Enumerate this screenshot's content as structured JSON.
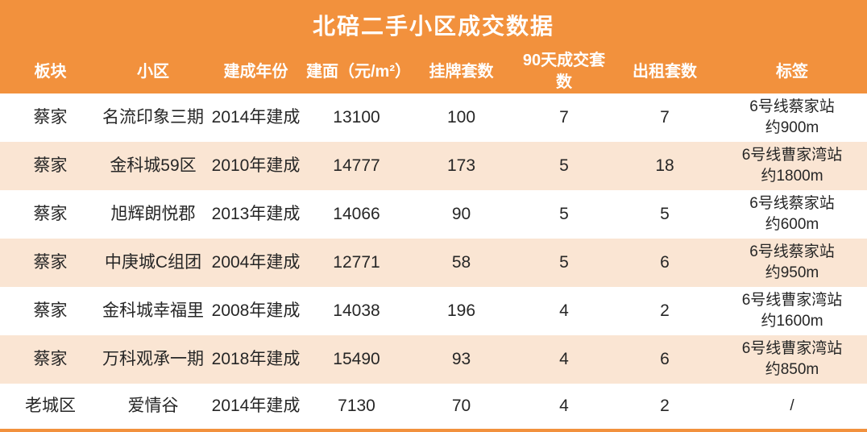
{
  "title": "北碚二手小区成交数据",
  "colors": {
    "header_orange": "#F2913D",
    "row_light_orange": "#FAE5D3",
    "row_white": "#FFFFFF",
    "header_text": "#FFFFFF",
    "body_text": "#262626"
  },
  "columns": [
    "板块",
    "小区",
    "建成年份",
    "建面（元/m²）",
    "挂牌套数",
    "90天成交套数",
    "出租套数",
    "标签"
  ],
  "table": {
    "rows": [
      {
        "block": "蔡家",
        "community": "名流印象三期",
        "year": "2014年建成",
        "price": "13100",
        "listed": "100",
        "sold90": "7",
        "rent": "7",
        "tag1": "6号线蔡家站",
        "tag2": "约900m"
      },
      {
        "block": "蔡家",
        "community": "金科城59区",
        "year": "2010年建成",
        "price": "14777",
        "listed": "173",
        "sold90": "5",
        "rent": "18",
        "tag1": "6号线曹家湾站",
        "tag2": "约1800m"
      },
      {
        "block": "蔡家",
        "community": "旭辉朗悦郡",
        "year": "2013年建成",
        "price": "14066",
        "listed": "90",
        "sold90": "5",
        "rent": "5",
        "tag1": "6号线蔡家站",
        "tag2": "约600m"
      },
      {
        "block": "蔡家",
        "community": "中庚城C组团",
        "year": "2004年建成",
        "price": "12771",
        "listed": "58",
        "sold90": "5",
        "rent": "6",
        "tag1": "6号线蔡家站",
        "tag2": "约950m"
      },
      {
        "block": "蔡家",
        "community": "金科城幸福里",
        "year": "2008年建成",
        "price": "14038",
        "listed": "196",
        "sold90": "4",
        "rent": "2",
        "tag1": "6号线曹家湾站",
        "tag2": "约1600m"
      },
      {
        "block": "蔡家",
        "community": "万科观承一期",
        "year": "2018年建成",
        "price": "15490",
        "listed": "93",
        "sold90": "4",
        "rent": "6",
        "tag1": "6号线曹家湾站",
        "tag2": "约850m"
      },
      {
        "block": "老城区",
        "community": "爱情谷",
        "year": "2014年建成",
        "price": "7130",
        "listed": "70",
        "sold90": "4",
        "rent": "2",
        "tag1": "/",
        "tag2": ""
      }
    ]
  },
  "chart_data": {
    "type": "table",
    "title": "北碚二手小区成交数据",
    "columns": [
      "板块",
      "小区",
      "建成年份",
      "建面（元/m²）",
      "挂牌套数",
      "90天成交套数",
      "出租套数",
      "标签"
    ],
    "rows": [
      [
        "蔡家",
        "名流印象三期",
        "2014年建成",
        13100,
        100,
        7,
        7,
        "6号线蔡家站约900m"
      ],
      [
        "蔡家",
        "金科城59区",
        "2010年建成",
        14777,
        173,
        5,
        18,
        "6号线曹家湾站约1800m"
      ],
      [
        "蔡家",
        "旭辉朗悦郡",
        "2013年建成",
        14066,
        90,
        5,
        5,
        "6号线蔡家站约600m"
      ],
      [
        "蔡家",
        "中庚城C组团",
        "2004年建成",
        12771,
        58,
        5,
        6,
        "6号线蔡家站约950m"
      ],
      [
        "蔡家",
        "金科城幸福里",
        "2008年建成",
        14038,
        196,
        4,
        2,
        "6号线曹家湾站约1600m"
      ],
      [
        "蔡家",
        "万科观承一期",
        "2018年建成",
        15490,
        93,
        4,
        6,
        "6号线曹家湾站约850m"
      ],
      [
        "老城区",
        "爱情谷",
        "2014年建成",
        7130,
        70,
        4,
        2,
        "/"
      ]
    ]
  }
}
